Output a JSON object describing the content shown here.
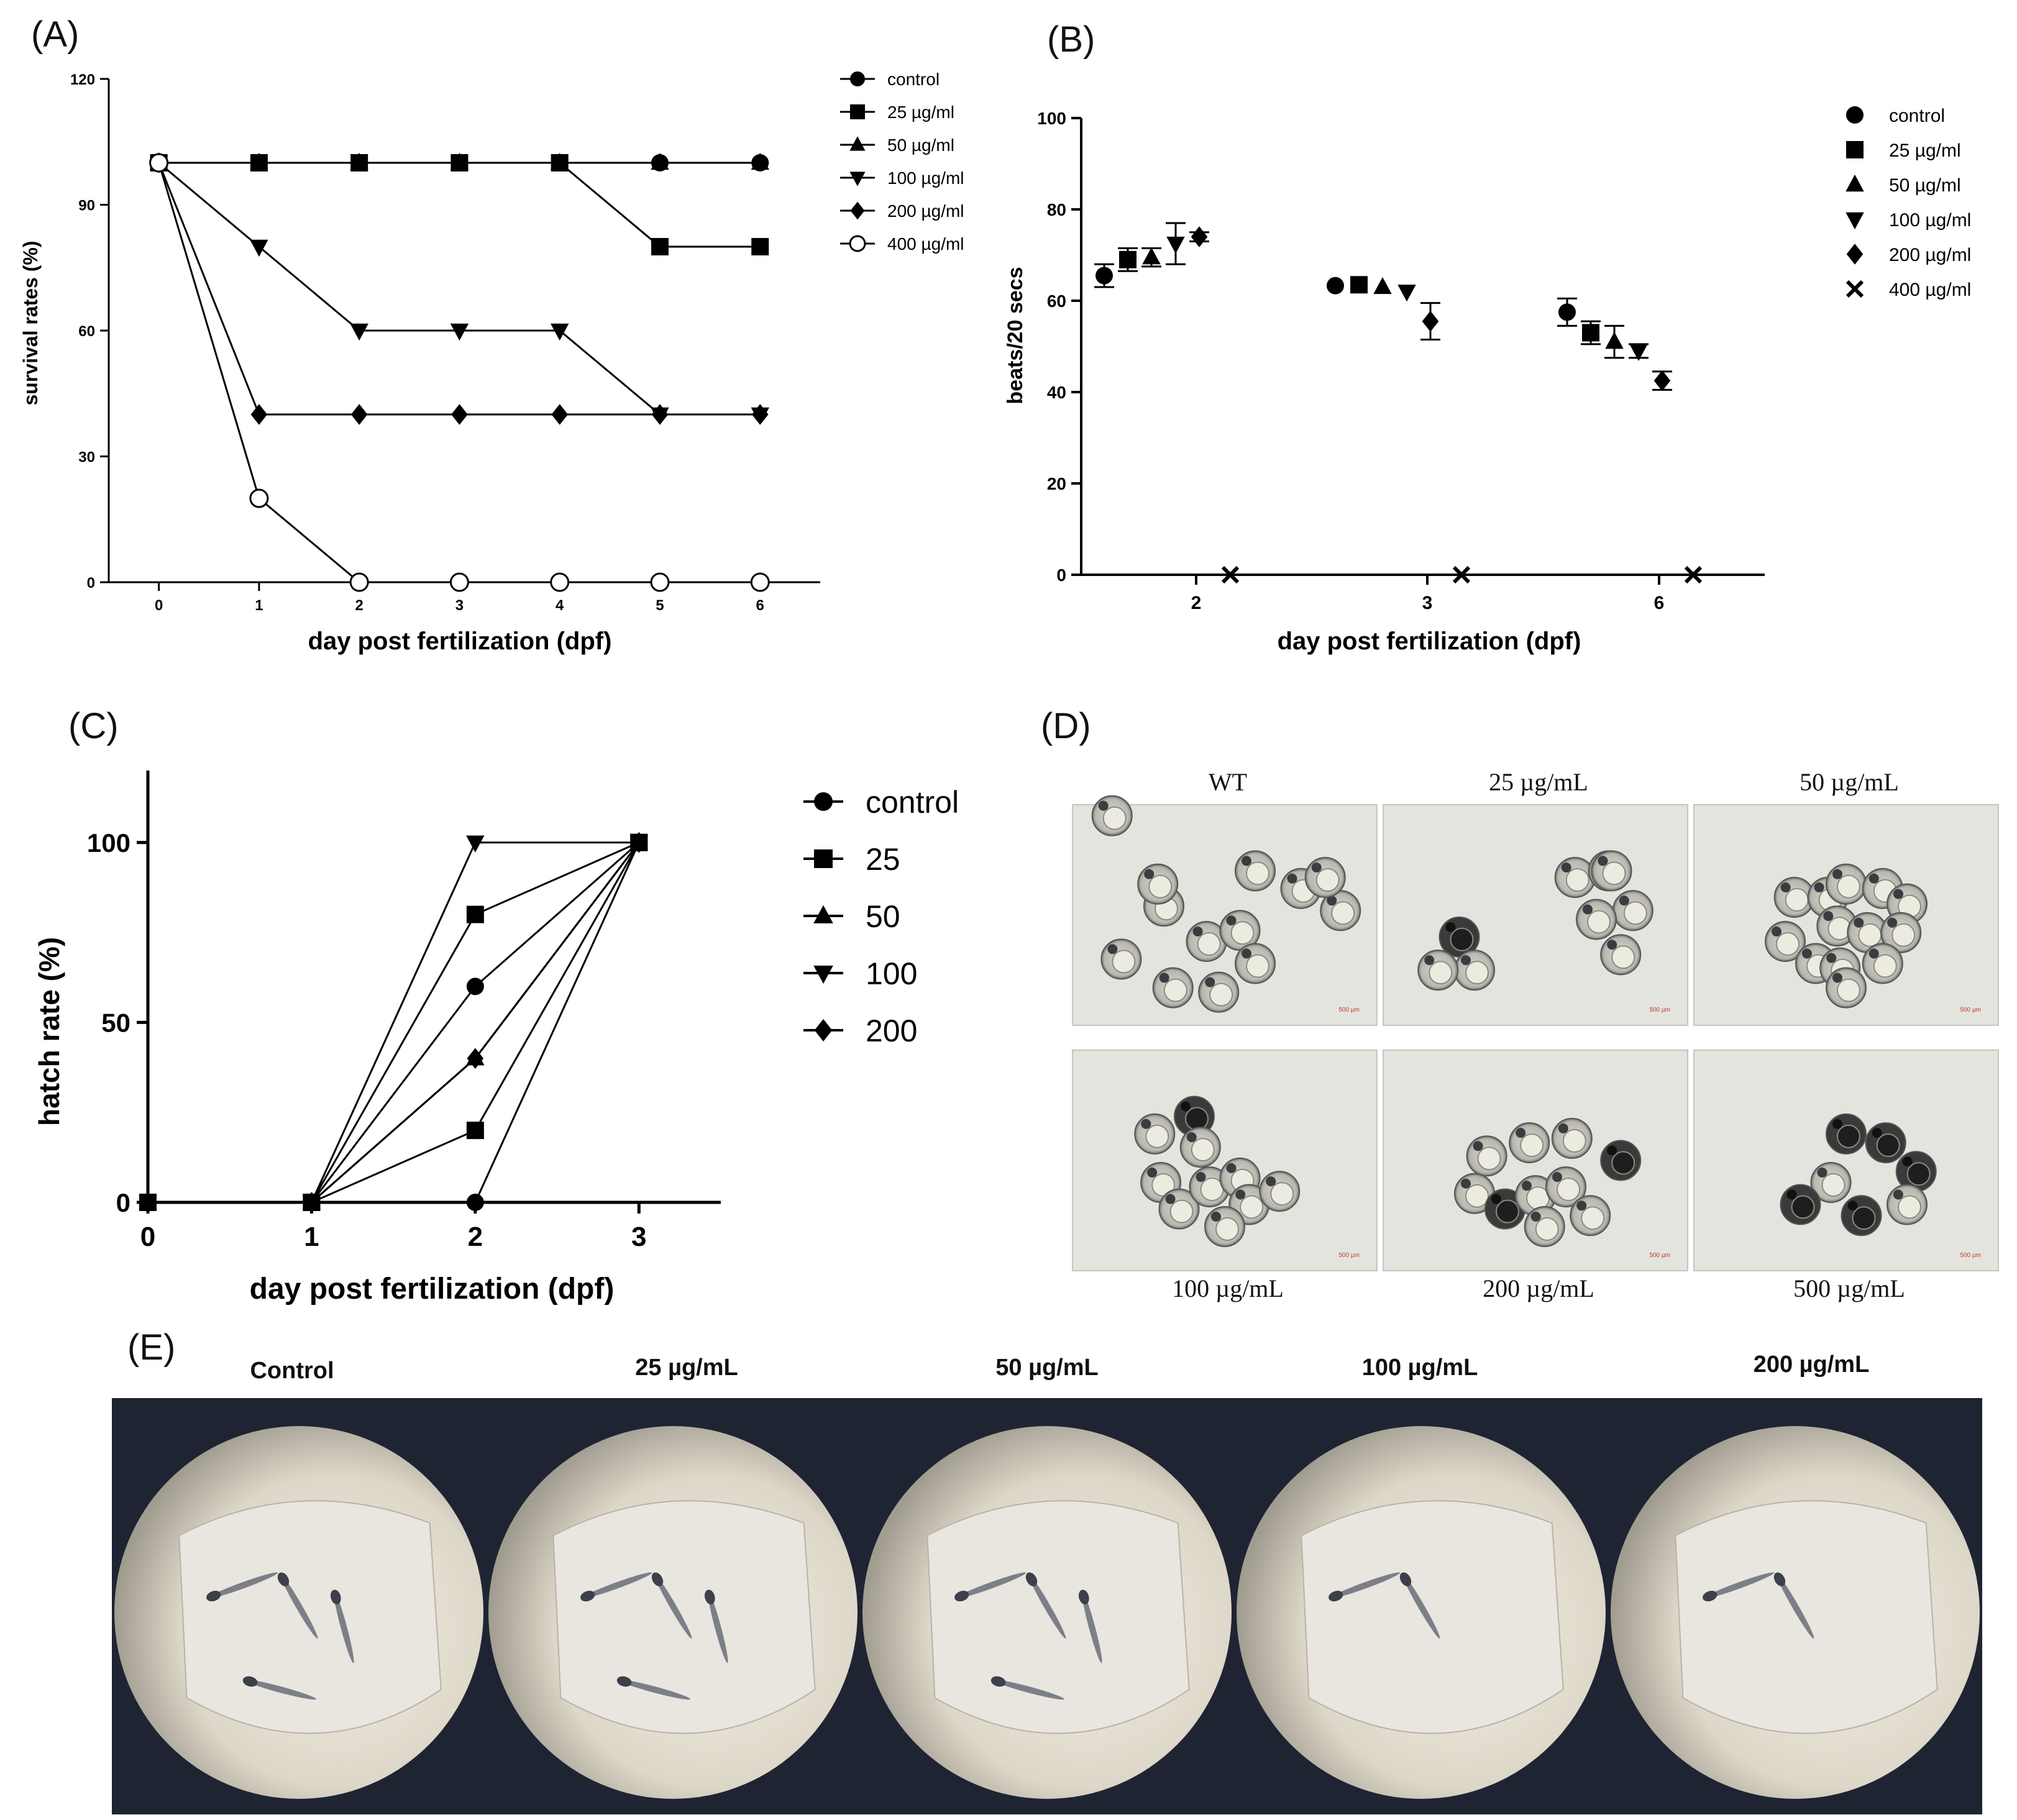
{
  "panels": {
    "a_label": "(A)",
    "b_label": "(B)",
    "c_label": "(C)",
    "d_label": "(D)",
    "e_label": "(E)"
  },
  "micrographs": {
    "captions": [
      "WT",
      "25 µg/mL",
      "50 µg/mL",
      "100 µg/mL",
      "200 µg/mL",
      "500 µg/mL"
    ],
    "scale_label": "500 µm",
    "eggs": [
      [
        [
          0.13,
          0.05
        ],
        [
          0.3,
          0.46
        ],
        [
          0.6,
          0.3
        ],
        [
          0.75,
          0.38
        ],
        [
          0.28,
          0.36
        ],
        [
          0.44,
          0.62
        ],
        [
          0.55,
          0.57
        ],
        [
          0.16,
          0.7
        ],
        [
          0.33,
          0.83
        ],
        [
          0.48,
          0.85
        ],
        [
          0.6,
          0.72
        ],
        [
          0.88,
          0.48
        ],
        [
          0.83,
          0.33
        ]
      ],
      [
        [
          0.25,
          0.6
        ],
        [
          0.3,
          0.75
        ],
        [
          0.18,
          0.75
        ],
        [
          0.63,
          0.33
        ],
        [
          0.74,
          0.3
        ],
        [
          0.82,
          0.48
        ],
        [
          0.7,
          0.52
        ],
        [
          0.78,
          0.68
        ],
        [
          0.75,
          0.3
        ]
      ],
      [
        [
          0.33,
          0.42
        ],
        [
          0.44,
          0.42
        ],
        [
          0.5,
          0.36
        ],
        [
          0.62,
          0.38
        ],
        [
          0.7,
          0.45
        ],
        [
          0.3,
          0.62
        ],
        [
          0.47,
          0.55
        ],
        [
          0.57,
          0.58
        ],
        [
          0.68,
          0.58
        ],
        [
          0.4,
          0.72
        ],
        [
          0.48,
          0.74
        ],
        [
          0.62,
          0.72
        ],
        [
          0.5,
          0.83
        ]
      ],
      [
        [
          0.27,
          0.38
        ],
        [
          0.4,
          0.3
        ],
        [
          0.42,
          0.44
        ],
        [
          0.29,
          0.6
        ],
        [
          0.35,
          0.72
        ],
        [
          0.45,
          0.62
        ],
        [
          0.55,
          0.58
        ],
        [
          0.58,
          0.7
        ],
        [
          0.68,
          0.64
        ],
        [
          0.5,
          0.8
        ]
      ],
      [
        [
          0.34,
          0.48
        ],
        [
          0.48,
          0.42
        ],
        [
          0.62,
          0.4
        ],
        [
          0.78,
          0.5
        ],
        [
          0.3,
          0.65
        ],
        [
          0.4,
          0.72
        ],
        [
          0.5,
          0.66
        ],
        [
          0.6,
          0.62
        ],
        [
          0.53,
          0.8
        ],
        [
          0.68,
          0.75
        ]
      ],
      [
        [
          0.5,
          0.38
        ],
        [
          0.63,
          0.42
        ],
        [
          0.73,
          0.55
        ],
        [
          0.45,
          0.6
        ],
        [
          0.35,
          0.7
        ],
        [
          0.55,
          0.75
        ],
        [
          0.7,
          0.7
        ]
      ]
    ],
    "dark_eggs": [
      [],
      [
        0
      ],
      [],
      [
        1
      ],
      [
        3,
        5
      ],
      [
        0,
        1,
        2,
        4,
        5
      ]
    ]
  },
  "larvae": {
    "captions": [
      "Control",
      "25 µg/mL",
      "50 µg/mL",
      "100 µg/mL",
      "200 µg/mL"
    ]
  },
  "chart_data": [
    {
      "id": "A",
      "type": "line",
      "title": "",
      "xlabel": "day post fertilization (dpf)",
      "ylabel": "survival rates (%)",
      "x": [
        0,
        1,
        2,
        3,
        4,
        5,
        6
      ],
      "xlim": [
        -0.5,
        6.6
      ],
      "ylim": [
        0,
        120
      ],
      "yticks": [
        0,
        30,
        60,
        90,
        120
      ],
      "grid": false,
      "legend": "top-right",
      "series": [
        {
          "name": "control",
          "marker": "circle",
          "values": [
            100,
            100,
            100,
            100,
            100,
            100,
            100
          ]
        },
        {
          "name": "25 µg/ml",
          "marker": "square",
          "values": [
            100,
            100,
            100,
            100,
            100,
            80,
            80
          ]
        },
        {
          "name": "50 µg/ml",
          "marker": "triangle-up",
          "values": [
            100,
            100,
            100,
            100,
            100,
            100,
            100
          ]
        },
        {
          "name": "100 µg/ml",
          "marker": "triangle-down",
          "values": [
            100,
            80,
            60,
            60,
            60,
            40,
            40
          ]
        },
        {
          "name": "200 µg/ml",
          "marker": "diamond",
          "values": [
            100,
            40,
            40,
            40,
            40,
            40,
            40
          ]
        },
        {
          "name": "400 µg/ml",
          "marker": "open-circle",
          "values": [
            100,
            20,
            0,
            0,
            0,
            0,
            0
          ]
        }
      ]
    },
    {
      "id": "B",
      "type": "scatter",
      "title": "",
      "xlabel": "day post fertilization (dpf)",
      "ylabel": "beats/20 secs",
      "categories": [
        "2",
        "3",
        "6"
      ],
      "ylim": [
        0,
        100
      ],
      "yticks": [
        0,
        20,
        40,
        60,
        80,
        100
      ],
      "grid": false,
      "legend": "top-right",
      "series": [
        {
          "name": "control",
          "marker": "circle",
          "values": [
            65.5,
            63.3,
            57.5
          ],
          "errors": [
            2.5,
            0,
            3.0
          ]
        },
        {
          "name": "25 µg/ml",
          "marker": "square",
          "values": [
            69.0,
            63.5,
            53.0
          ],
          "errors": [
            2.5,
            0,
            2.5
          ]
        },
        {
          "name": "50 µg/ml",
          "marker": "triangle-up",
          "values": [
            69.5,
            63.0,
            51.0
          ],
          "errors": [
            2.0,
            0,
            3.5
          ]
        },
        {
          "name": "100 µg/ml",
          "marker": "triangle-down",
          "values": [
            72.5,
            62.0,
            49.0
          ],
          "errors": [
            4.5,
            0,
            1.5
          ]
        },
        {
          "name": "200 µg/ml",
          "marker": "diamond",
          "values": [
            74.0,
            55.5,
            42.5
          ],
          "errors": [
            1.0,
            4.0,
            2.0
          ]
        },
        {
          "name": "400 µg/ml",
          "marker": "cross",
          "values": [
            0,
            0,
            0
          ],
          "errors": [
            0,
            0,
            0
          ]
        }
      ]
    },
    {
      "id": "C",
      "type": "line",
      "title": "",
      "xlabel": "day post fertilization (dpf)",
      "ylabel": "hatch rate (%)",
      "x": [
        0,
        1,
        2,
        3
      ],
      "xlim": [
        0,
        3.5
      ],
      "ylim": [
        0,
        120
      ],
      "yticks": [
        0,
        50,
        100
      ],
      "grid": false,
      "legend": "right",
      "series": [
        {
          "name": "control",
          "marker": "circle",
          "values": [
            0,
            0,
            60,
            100
          ]
        },
        {
          "name": "25",
          "marker": "square",
          "values": [
            0,
            0,
            80,
            100
          ]
        },
        {
          "name": "50",
          "marker": "triangle-up",
          "values": [
            0,
            0,
            40,
            100
          ]
        },
        {
          "name": "100",
          "marker": "triangle-down",
          "values": [
            0,
            0,
            100,
            100
          ]
        },
        {
          "name": "200",
          "marker": "diamond",
          "values": [
            0,
            0,
            40,
            100
          ]
        },
        {
          "name": "",
          "marker": "square",
          "values": [
            0,
            0,
            20,
            100
          ]
        },
        {
          "name": "",
          "marker": "circle",
          "values": [
            0,
            0,
            0,
            100
          ]
        }
      ]
    }
  ]
}
